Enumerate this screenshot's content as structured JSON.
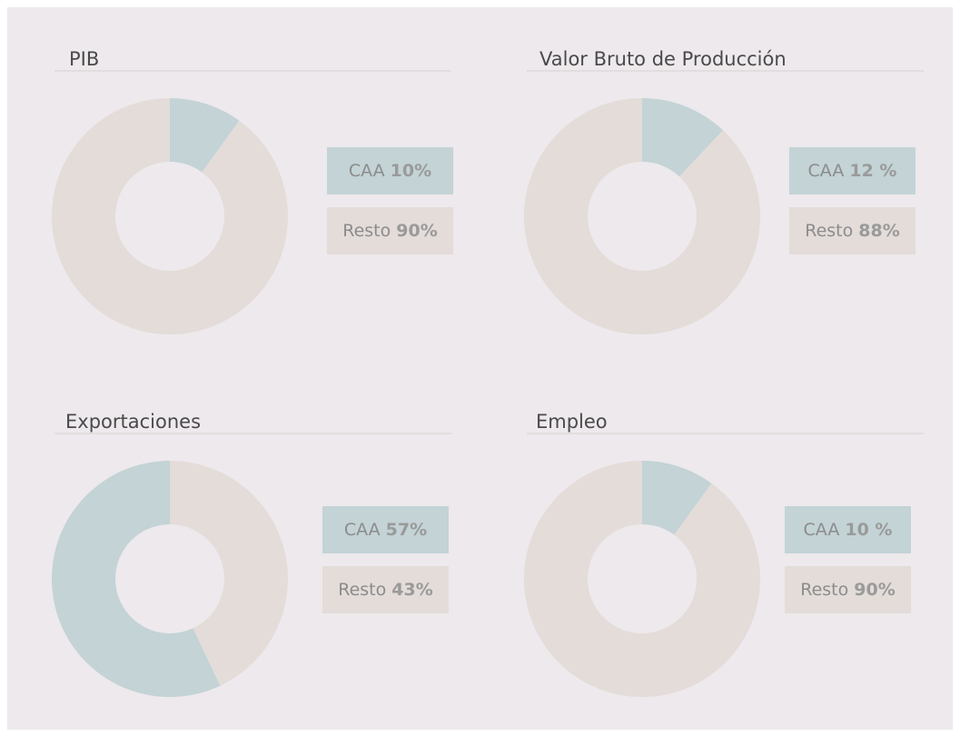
{
  "chart_data": [
    {
      "type": "pie",
      "title": "PIB",
      "categories": [
        "CAA",
        "Resto"
      ],
      "values": [
        10,
        90
      ],
      "value_labels": [
        "10%",
        "90%"
      ],
      "colors": [
        "#c3d3d6",
        "#e3dcd9"
      ],
      "donut": true,
      "direction": "clockwise"
    },
    {
      "type": "pie",
      "title": "Valor Bruto de Producción",
      "categories": [
        "CAA",
        "Resto"
      ],
      "values": [
        12,
        88
      ],
      "value_labels": [
        "12 %",
        "88%"
      ],
      "colors": [
        "#c3d3d6",
        "#e3dcd9"
      ],
      "donut": true,
      "direction": "clockwise"
    },
    {
      "type": "pie",
      "title": "Exportaciones",
      "categories": [
        "CAA",
        "Resto"
      ],
      "values": [
        57,
        43
      ],
      "value_labels": [
        "57%",
        "43%"
      ],
      "colors": [
        "#c3d3d6",
        "#e3dcd9"
      ],
      "donut": true,
      "direction": "counterclockwise"
    },
    {
      "type": "pie",
      "title": "Empleo",
      "categories": [
        "CAA",
        "Resto"
      ],
      "values": [
        10,
        90
      ],
      "value_labels": [
        "10 %",
        "90%"
      ],
      "colors": [
        "#c3d3d6",
        "#e3dcd9"
      ],
      "donut": true,
      "direction": "clockwise"
    }
  ]
}
